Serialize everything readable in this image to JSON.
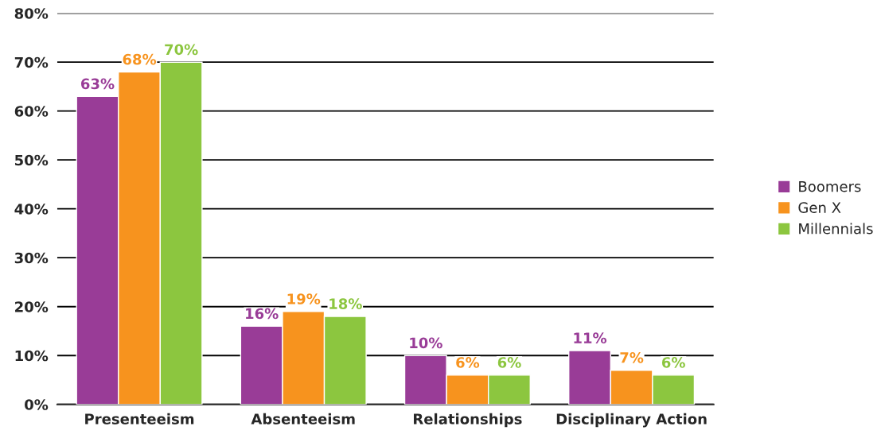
{
  "chart_data": {
    "type": "bar",
    "categories": [
      "Presenteeism",
      "Absenteeism",
      "Relationships",
      "Disciplinary Action"
    ],
    "series": [
      {
        "name": "Boomers",
        "color": "#993c97",
        "values": [
          63,
          16,
          10,
          11
        ],
        "value_labels": [
          "63%",
          "16%",
          "10%",
          "11%"
        ]
      },
      {
        "name": "Gen X",
        "color": "#f7931e",
        "values": [
          68,
          19,
          6,
          7
        ],
        "value_labels": [
          "68%",
          "19%",
          "6%",
          "7%"
        ]
      },
      {
        "name": "Millennials",
        "color": "#8cc63f",
        "values": [
          70,
          18,
          6,
          6
        ],
        "value_labels": [
          "70%",
          "18%",
          "6%",
          "6%"
        ]
      }
    ],
    "ylim": [
      0,
      80
    ],
    "yticks": [
      {
        "value": 0,
        "label": "0%"
      },
      {
        "value": 10,
        "label": "10%"
      },
      {
        "value": 20,
        "label": "20%"
      },
      {
        "value": 30,
        "label": "30%"
      },
      {
        "value": 40,
        "label": "40%"
      },
      {
        "value": 50,
        "label": "50%"
      },
      {
        "value": 60,
        "label": "60%"
      },
      {
        "value": 70,
        "label": "70%"
      },
      {
        "value": 80,
        "label": "80%"
      }
    ],
    "grid": "y",
    "legend": "right"
  }
}
